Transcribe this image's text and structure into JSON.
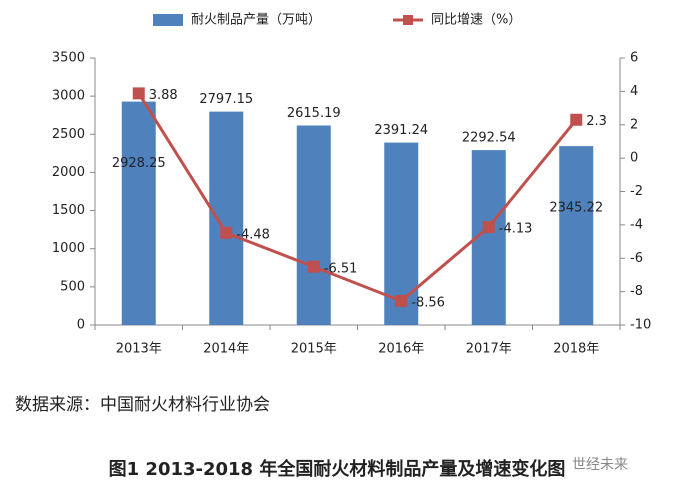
{
  "chart_data": {
    "type": "bar",
    "categories": [
      "2013年",
      "2014年",
      "2015年",
      "2016年",
      "2017年",
      "2018年"
    ],
    "series": [
      {
        "name": "耐火制品产量（万吨）",
        "type": "bar",
        "color": "#4f81bd",
        "values": [
          2928.25,
          2797.15,
          2615.19,
          2391.24,
          2292.54,
          2345.22
        ]
      },
      {
        "name": "同比增速（%）",
        "type": "line",
        "axis": "y2",
        "color": "#c0504d",
        "values": [
          3.88,
          -4.48,
          -6.51,
          -8.56,
          -4.13,
          2.3
        ]
      }
    ],
    "ylim": [
      0,
      3500
    ],
    "yticks": [
      0,
      500,
      1000,
      1500,
      2000,
      2500,
      3000,
      3500
    ],
    "y2lim": [
      -10,
      6
    ],
    "y2ticks": [
      -10,
      -8,
      -6,
      -4,
      -2,
      0,
      2,
      4,
      6
    ],
    "grid": false,
    "legend": "top",
    "source": "数据来源：中国耐火材料行业协会",
    "caption": "图1 2013-2018 年全国耐火材料制品产量及增速变化图",
    "watermark": "世经未来"
  }
}
